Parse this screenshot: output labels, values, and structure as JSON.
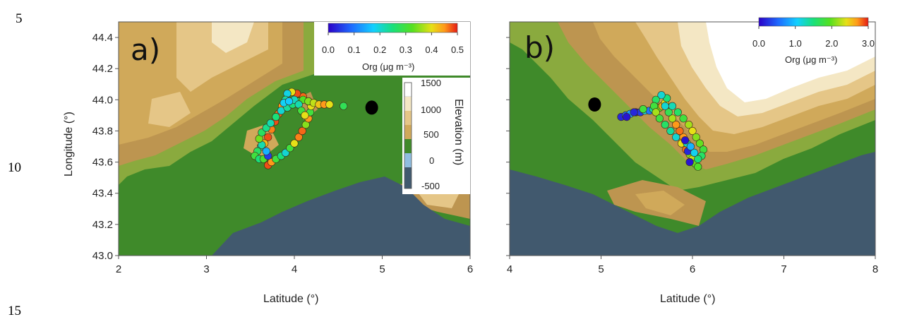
{
  "line_numbers": [
    "5",
    "10",
    "15"
  ],
  "colors": {
    "sea": "#41596e",
    "lowland": "#3f8a2a",
    "elev_bands": [
      "#3f8a2a",
      "#8aaa3e",
      "#bd9550",
      "#d0a95a",
      "#e5c687",
      "#f4e7c4",
      "#ffffff"
    ],
    "site_marker": "#000000"
  },
  "chart_data": [
    {
      "type": "scatter",
      "panel_label": "a)",
      "xlabel": "Latitude (°)",
      "ylabel": "Longitude (°)",
      "xlim": [
        2,
        6
      ],
      "ylim": [
        43.0,
        44.5
      ],
      "x_ticks": [
        "2",
        "3",
        "4",
        "5",
        "6"
      ],
      "y_ticks": [
        "43.0",
        "43.2",
        "43.4",
        "43.6",
        "43.8",
        "44.0",
        "44.2",
        "44.4"
      ],
      "site": {
        "x": 4.88,
        "y": 43.95
      },
      "colorbar": {
        "label": "Org (μg m⁻³)",
        "ticks": [
          "0.0",
          "0.1",
          "0.2",
          "0.3",
          "0.4",
          "0.5"
        ],
        "range": [
          0.0,
          0.5
        ]
      },
      "elevation_bar": {
        "label": "Elevation (m)",
        "ticks": [
          "1500",
          "1000",
          "500",
          "0",
          "-500"
        ]
      },
      "points": [
        [
          3.7,
          43.58,
          0.48
        ],
        [
          3.74,
          43.6,
          0.45
        ],
        [
          3.79,
          43.62,
          0.3
        ],
        [
          3.85,
          43.64,
          0.25
        ],
        [
          3.9,
          43.66,
          0.2
        ],
        [
          3.95,
          43.69,
          0.3
        ],
        [
          4.0,
          43.72,
          0.4
        ],
        [
          4.05,
          43.76,
          0.46
        ],
        [
          4.09,
          43.8,
          0.47
        ],
        [
          4.13,
          43.84,
          0.35
        ],
        [
          4.16,
          43.88,
          0.45
        ],
        [
          4.18,
          43.92,
          0.3
        ],
        [
          4.19,
          43.96,
          0.4
        ],
        [
          4.16,
          43.99,
          0.45
        ],
        [
          4.1,
          44.02,
          0.47
        ],
        [
          4.03,
          44.04,
          0.48
        ],
        [
          3.97,
          44.05,
          0.4
        ],
        [
          3.92,
          44.04,
          0.19
        ],
        [
          3.9,
          44.0,
          0.23
        ],
        [
          3.86,
          43.96,
          0.45
        ],
        [
          3.82,
          43.91,
          0.47
        ],
        [
          3.78,
          43.86,
          0.48
        ],
        [
          3.74,
          43.81,
          0.46
        ],
        [
          3.7,
          43.76,
          0.48
        ],
        [
          3.66,
          43.72,
          0.43
        ],
        [
          3.62,
          43.7,
          0.22
        ],
        [
          3.58,
          43.67,
          0.27
        ],
        [
          3.55,
          43.64,
          0.3
        ],
        [
          3.6,
          43.62,
          0.25
        ],
        [
          3.65,
          43.62,
          0.31
        ],
        [
          3.7,
          43.64,
          0.05
        ],
        [
          3.68,
          43.67,
          0.15
        ],
        [
          3.63,
          43.71,
          0.22
        ],
        [
          3.6,
          43.75,
          0.34
        ],
        [
          3.63,
          43.79,
          0.27
        ],
        [
          3.68,
          43.82,
          0.24
        ],
        [
          3.73,
          43.85,
          0.22
        ],
        [
          3.79,
          43.89,
          0.25
        ],
        [
          3.85,
          43.93,
          0.2
        ],
        [
          3.92,
          43.95,
          0.23
        ],
        [
          3.98,
          43.97,
          0.25
        ],
        [
          4.04,
          43.99,
          0.28
        ],
        [
          4.1,
          44.0,
          0.32
        ],
        [
          4.16,
          43.99,
          0.35
        ],
        [
          4.22,
          43.98,
          0.38
        ],
        [
          4.28,
          43.97,
          0.42
        ],
        [
          4.34,
          43.97,
          0.45
        ],
        [
          4.4,
          43.97,
          0.4
        ],
        [
          4.56,
          43.96,
          0.28
        ],
        [
          4.0,
          44.0,
          0.21
        ],
        [
          4.05,
          43.97,
          0.22
        ],
        [
          4.08,
          43.93,
          0.3
        ],
        [
          4.12,
          43.9,
          0.4
        ],
        [
          3.88,
          43.98,
          0.18
        ],
        [
          3.94,
          43.99,
          0.17
        ]
      ]
    },
    {
      "type": "scatter",
      "panel_label": "b)",
      "xlabel": "Latitude (°)",
      "ylabel": "",
      "xlim": [
        4,
        8
      ],
      "ylim": [
        43.0,
        44.5
      ],
      "x_ticks": [
        "4",
        "5",
        "6",
        "7",
        "8"
      ],
      "y_ticks": [],
      "site": {
        "x": 4.93,
        "y": 43.97
      },
      "colorbar": {
        "label": "Org (μg m⁻³)",
        "ticks": [
          "0.0",
          "1.0",
          "2.0",
          "3.0"
        ],
        "range": [
          0.0,
          3.0
        ]
      },
      "points": [
        [
          5.22,
          43.89,
          0.2
        ],
        [
          5.27,
          43.9,
          0.5
        ],
        [
          5.32,
          43.91,
          0.8
        ],
        [
          5.38,
          43.92,
          0.1
        ],
        [
          5.43,
          43.92,
          0.3
        ],
        [
          5.48,
          43.93,
          1.2
        ],
        [
          5.53,
          43.93,
          0.6
        ],
        [
          5.57,
          43.94,
          1.4
        ],
        [
          5.61,
          43.94,
          1.6
        ],
        [
          5.64,
          43.95,
          2.0
        ],
        [
          5.67,
          43.96,
          2.6
        ],
        [
          5.7,
          43.98,
          2.4
        ],
        [
          5.72,
          44.01,
          1.5
        ],
        [
          5.66,
          44.03,
          1.2
        ],
        [
          5.6,
          44.0,
          1.6
        ],
        [
          5.58,
          43.96,
          1.8
        ],
        [
          5.6,
          43.92,
          2.2
        ],
        [
          5.64,
          43.88,
          1.8
        ],
        [
          5.7,
          43.84,
          1.6
        ],
        [
          5.76,
          43.8,
          1.4
        ],
        [
          5.82,
          43.76,
          1.2
        ],
        [
          5.88,
          43.72,
          2.4
        ],
        [
          5.93,
          43.68,
          2.8
        ],
        [
          5.97,
          43.65,
          2.1
        ],
        [
          6.0,
          43.62,
          2.3
        ],
        [
          6.03,
          43.59,
          2.0
        ],
        [
          6.06,
          43.57,
          1.9
        ],
        [
          5.97,
          43.6,
          0.1
        ],
        [
          5.95,
          43.67,
          0.2
        ],
        [
          5.94,
          43.72,
          1.3
        ],
        [
          5.9,
          43.76,
          2.7
        ],
        [
          5.86,
          43.8,
          2.8
        ],
        [
          5.82,
          43.84,
          2.7
        ],
        [
          5.78,
          43.88,
          2.2
        ],
        [
          5.74,
          43.92,
          1.7
        ],
        [
          5.7,
          43.96,
          1.2
        ],
        [
          5.78,
          43.96,
          1.3
        ],
        [
          5.84,
          43.92,
          1.6
        ],
        [
          5.9,
          43.88,
          1.8
        ],
        [
          5.96,
          43.84,
          2.2
        ],
        [
          6.0,
          43.8,
          2.4
        ],
        [
          6.04,
          43.76,
          2.1
        ],
        [
          6.08,
          43.72,
          2.0
        ],
        [
          6.12,
          43.68,
          1.8
        ],
        [
          6.1,
          43.64,
          1.6
        ],
        [
          6.06,
          43.62,
          1.5
        ],
        [
          6.02,
          43.66,
          1.1
        ],
        [
          5.98,
          43.7,
          0.9
        ],
        [
          5.92,
          43.74,
          0.1
        ],
        [
          5.36,
          43.92,
          0.2
        ],
        [
          5.28,
          43.89,
          0.1
        ],
        [
          5.46,
          43.94,
          1.8
        ]
      ]
    }
  ]
}
